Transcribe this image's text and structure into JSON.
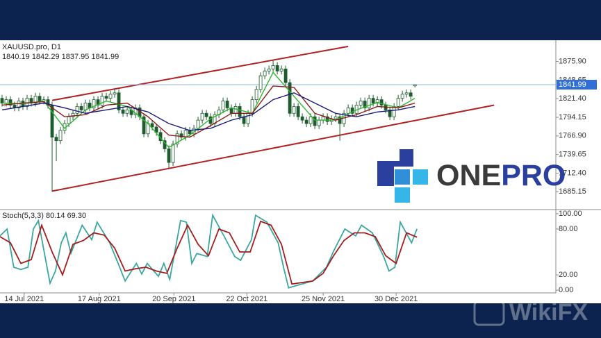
{
  "chart_data": [
    {
      "type": "candlestick",
      "title": "XAUUSD.pro, D1",
      "subtitle": "1840.19 1842.29 1837.95 1841.99",
      "open": [
        1822,
        1815,
        1820,
        1812,
        1808,
        1818,
        1810,
        1822,
        1815,
        1825,
        1818,
        1820,
        1812,
        1765,
        1760,
        1775,
        1785,
        1795,
        1800,
        1810,
        1805,
        1815,
        1808,
        1820,
        1812,
        1825,
        1822,
        1828,
        1830,
        1805,
        1800,
        1805,
        1798,
        1808,
        1795,
        1770,
        1785,
        1780,
        1772,
        1760,
        1748,
        1728,
        1755,
        1770,
        1765,
        1775,
        1770,
        1778,
        1790,
        1800,
        1795,
        1785,
        1798,
        1805,
        1818,
        1808,
        1800,
        1810,
        1795,
        1785,
        1800,
        1820,
        1835,
        1855,
        1862,
        1865,
        1870,
        1862,
        1865,
        1845,
        1800,
        1810,
        1795,
        1790,
        1785,
        1795,
        1782,
        1790,
        1795,
        1788,
        1792,
        1795,
        1785,
        1800,
        1808,
        1800,
        1812,
        1818,
        1808,
        1822,
        1815,
        1820,
        1812,
        1805,
        1795,
        1810,
        1822,
        1828,
        1830,
        1840.19
      ],
      "high": [
        1827,
        1825,
        1825,
        1817,
        1823,
        1823,
        1827,
        1827,
        1830,
        1830,
        1825,
        1825,
        1817,
        1770,
        1780,
        1790,
        1800,
        1805,
        1815,
        1815,
        1820,
        1820,
        1825,
        1825,
        1830,
        1830,
        1833,
        1835,
        1835,
        1810,
        1810,
        1810,
        1813,
        1813,
        1800,
        1790,
        1790,
        1785,
        1777,
        1765,
        1753,
        1760,
        1775,
        1775,
        1780,
        1780,
        1783,
        1795,
        1805,
        1805,
        1800,
        1803,
        1810,
        1823,
        1823,
        1813,
        1815,
        1815,
        1800,
        1805,
        1825,
        1840,
        1860,
        1867,
        1870,
        1877,
        1875,
        1870,
        1870,
        1850,
        1815,
        1815,
        1800,
        1795,
        1800,
        1800,
        1795,
        1800,
        1800,
        1797,
        1800,
        1800,
        1805,
        1813,
        1813,
        1817,
        1823,
        1823,
        1827,
        1827,
        1825,
        1825,
        1817,
        1810,
        1815,
        1827,
        1833,
        1835,
        1835,
        1842.29
      ],
      "low": [
        1810,
        1810,
        1807,
        1803,
        1803,
        1805,
        1805,
        1810,
        1810,
        1813,
        1813,
        1807,
        1685,
        1730,
        1755,
        1770,
        1780,
        1790,
        1795,
        1800,
        1800,
        1803,
        1803,
        1807,
        1807,
        1817,
        1817,
        1823,
        1800,
        1795,
        1795,
        1793,
        1793,
        1790,
        1765,
        1765,
        1775,
        1767,
        1755,
        1743,
        1720,
        1723,
        1750,
        1760,
        1760,
        1765,
        1765,
        1773,
        1785,
        1790,
        1780,
        1780,
        1793,
        1800,
        1803,
        1795,
        1795,
        1790,
        1780,
        1780,
        1795,
        1815,
        1830,
        1850,
        1857,
        1860,
        1857,
        1857,
        1840,
        1795,
        1795,
        1790,
        1785,
        1780,
        1780,
        1777,
        1777,
        1785,
        1783,
        1783,
        1787,
        1760,
        1780,
        1795,
        1795,
        1795,
        1807,
        1803,
        1803,
        1810,
        1810,
        1807,
        1800,
        1790,
        1790,
        1805,
        1817,
        1823,
        1820,
        1837.95
      ],
      "close": [
        1815,
        1820,
        1812,
        1808,
        1818,
        1810,
        1822,
        1815,
        1825,
        1818,
        1820,
        1812,
        1765,
        1760,
        1775,
        1785,
        1795,
        1800,
        1810,
        1805,
        1815,
        1808,
        1820,
        1812,
        1825,
        1822,
        1828,
        1830,
        1805,
        1800,
        1805,
        1798,
        1808,
        1795,
        1770,
        1785,
        1780,
        1772,
        1760,
        1748,
        1728,
        1755,
        1770,
        1765,
        1775,
        1770,
        1778,
        1790,
        1800,
        1795,
        1785,
        1798,
        1805,
        1818,
        1808,
        1800,
        1810,
        1795,
        1785,
        1800,
        1820,
        1835,
        1855,
        1862,
        1865,
        1870,
        1862,
        1865,
        1845,
        1800,
        1810,
        1795,
        1790,
        1785,
        1795,
        1782,
        1790,
        1795,
        1788,
        1792,
        1795,
        1785,
        1800,
        1808,
        1800,
        1812,
        1818,
        1808,
        1822,
        1815,
        1820,
        1812,
        1805,
        1795,
        1810,
        1822,
        1828,
        1830,
        1825,
        1841.99
      ],
      "up_color": "#ffffff",
      "down_color": "#1e5b2e",
      "edge_color": "#1e5b2e",
      "series": [
        {
          "color": "#2fb52f",
          "x": [
            0,
            5,
            10,
            15,
            20,
            25,
            30,
            35,
            40,
            45,
            50,
            55,
            60,
            65,
            70,
            75,
            80,
            85,
            90,
            95,
            99
          ],
          "values": [
            1815,
            1814,
            1818,
            1778,
            1805,
            1818,
            1810,
            1785,
            1750,
            1768,
            1792,
            1808,
            1800,
            1860,
            1825,
            1790,
            1790,
            1805,
            1816,
            1808,
            1822
          ]
        },
        {
          "color": "#8b1a1a",
          "x": [
            0,
            5,
            10,
            15,
            20,
            25,
            30,
            35,
            40,
            45,
            50,
            55,
            60,
            65,
            70,
            75,
            80,
            85,
            90,
            95,
            99
          ],
          "values": [
            1812,
            1815,
            1817,
            1795,
            1798,
            1812,
            1815,
            1795,
            1768,
            1765,
            1782,
            1800,
            1800,
            1840,
            1838,
            1800,
            1790,
            1798,
            1810,
            1808,
            1815
          ]
        },
        {
          "color": "#1a1a7a",
          "x": [
            0,
            5,
            10,
            15,
            20,
            25,
            30,
            35,
            40,
            45,
            50,
            55,
            60,
            65,
            70,
            75,
            80,
            85,
            90,
            95,
            99
          ],
          "values": [
            1805,
            1810,
            1815,
            1808,
            1800,
            1805,
            1810,
            1802,
            1785,
            1775,
            1778,
            1790,
            1798,
            1820,
            1830,
            1815,
            1800,
            1795,
            1802,
            1805,
            1810
          ]
        }
      ],
      "trendlines": [
        {
          "color": "#b22222",
          "x": [
            12,
            83
          ],
          "values": [
            1819,
            1898
          ]
        },
        {
          "color": "#b22222",
          "x": [
            12,
            118
          ],
          "values": [
            1686,
            1812
          ]
        }
      ],
      "last_price": 1841.99,
      "last_price_color": "#2f6fd6",
      "xlim": [
        -0.5,
        132.8
      ],
      "ylim": [
        1661,
        1905
      ],
      "yticks": [
        {
          "value": 1875.9,
          "label": "1875.90"
        },
        1848.65,
        {
          "value": 1821.4,
          "label": "1821.40"
        },
        1794.15,
        {
          "value": 1766.9,
          "label": "1766.90"
        },
        1739.65,
        {
          "value": 1712.4,
          "label": "1712.40"
        },
        1685.15
      ],
      "xticks": [
        {
          "value": 5.3,
          "label": "14 Jul 2021"
        },
        {
          "value": 23.3,
          "label": "17 Aug 2021"
        },
        {
          "value": 41.2,
          "label": "20 Sep 2021"
        },
        {
          "value": 58.7,
          "label": "22 Oct 2021"
        },
        {
          "value": 77,
          "label": "25 Nov 2021"
        },
        {
          "value": 94.5,
          "label": "30 Dec 2021"
        }
      ]
    },
    {
      "type": "line",
      "title": "Stoch(5,3,3) 80.14 69.30",
      "series": [
        {
          "color": "#3aa6a0",
          "x": [
            -0.5,
            1.2,
            2.8,
            4.5,
            6.2,
            7.5,
            8.7,
            10.3,
            11.5,
            12.8,
            14.2,
            15.3,
            16.5,
            19.2,
            21.5,
            22.8,
            25.8,
            28.2,
            29.5,
            32.2,
            33.5,
            34.8,
            37.5,
            38.8,
            40.2,
            42.8,
            44.2,
            45.5,
            46.7,
            49.2,
            50.5,
            53.2,
            55.8,
            57.2,
            59.8,
            60.8,
            63.5,
            66.2,
            67.5,
            68.7,
            71.2,
            74.5,
            77.8,
            79.5,
            82.2,
            84.8,
            86.2,
            88.8,
            91.5,
            92.8,
            94.2,
            95.5,
            98.2,
            99.5
          ],
          "values": [
            71,
            80,
            30,
            27,
            30,
            80,
            91,
            44,
            9,
            25,
            62,
            75,
            48,
            85,
            66,
            89,
            62,
            30,
            12,
            35,
            21,
            35,
            18,
            35,
            14,
            91,
            89,
            35,
            48,
            44,
            98,
            71,
            44,
            39,
            66,
            98,
            89,
            62,
            30,
            3,
            7,
            12,
            30,
            51,
            80,
            71,
            85,
            75,
            44,
            25,
            30,
            89,
            62,
            80.14
          ]
        },
        {
          "color": "#a31d1d",
          "x": [
            -0.5,
            2,
            4.5,
            7,
            9.5,
            12,
            14.5,
            17,
            19.5,
            22,
            24.5,
            27,
            29.5,
            32,
            34.5,
            37,
            39.5,
            42,
            44.5,
            47,
            49.5,
            52,
            54.5,
            57,
            59.5,
            62,
            64.5,
            67,
            69.5,
            72,
            74.5,
            77,
            79.5,
            82,
            84.5,
            87,
            89.5,
            92,
            94.5,
            97,
            99.5
          ],
          "values": [
            70,
            62,
            35,
            40,
            85,
            50,
            20,
            60,
            65,
            75,
            72,
            55,
            25,
            28,
            30,
            25,
            22,
            55,
            85,
            60,
            45,
            80,
            75,
            50,
            50,
            90,
            85,
            60,
            8,
            10,
            12,
            22,
            45,
            65,
            75,
            75,
            70,
            45,
            35,
            75,
            69.3
          ]
        }
      ],
      "xlim": [
        -0.5,
        132.8
      ],
      "ylim": [
        -3.6,
        104.5
      ],
      "yticks": [
        {
          "value": 100,
          "label": "100.00"
        },
        {
          "value": 80,
          "label": "80.00"
        },
        {
          "value": 20,
          "label": "20.00"
        },
        {
          "value": 0,
          "label": "0.00"
        }
      ]
    }
  ],
  "logo": {
    "part_1": "ONE",
    "part_2": "PRO"
  },
  "watermark": "WikiFX"
}
